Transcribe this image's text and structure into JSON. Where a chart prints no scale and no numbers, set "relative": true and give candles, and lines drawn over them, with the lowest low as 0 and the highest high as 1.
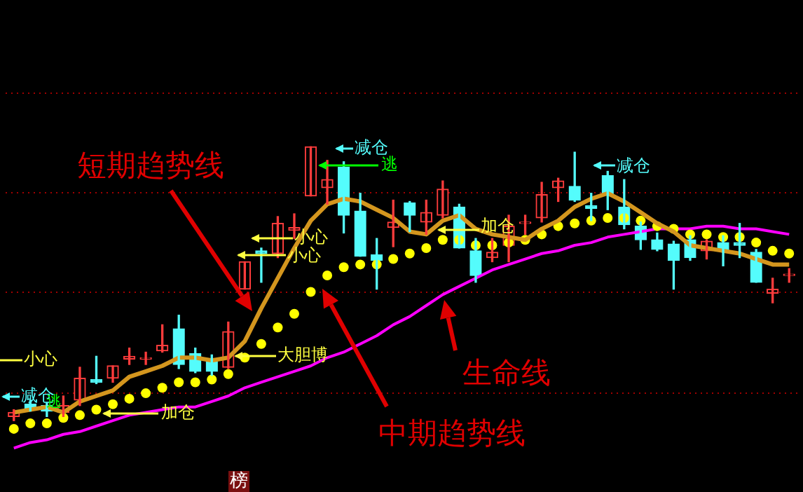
{
  "chart_data": {
    "type": "candlestick",
    "relative": true,
    "tick_labels": false,
    "ref_lines": [
      {
        "axis": "y",
        "value": 1.2,
        "color": "#a00000",
        "line_style": "dotted"
      },
      {
        "axis": "y",
        "value": 0.835,
        "color": "#a00000",
        "line_style": "dotted"
      },
      {
        "axis": "y",
        "value": 0.47,
        "color": "#a00000",
        "line_style": "dotted"
      },
      {
        "axis": "y",
        "value": 0.105,
        "color": "#a00000",
        "line_style": "dotted"
      }
    ],
    "categories": [
      null,
      null,
      null,
      null,
      null,
      null,
      null,
      null,
      null,
      null,
      null,
      null,
      null,
      null,
      null,
      null,
      null,
      null,
      null,
      null,
      null,
      null,
      null,
      null,
      null,
      null,
      null,
      null,
      null,
      null,
      null,
      null,
      null,
      null,
      null,
      null,
      null,
      null,
      null,
      null,
      null,
      null,
      null,
      null,
      null,
      null,
      null,
      null
    ],
    "ohlc": [
      [
        0.015,
        0.04,
        0,
        0.03
      ],
      [
        0.06,
        0.075,
        0.035,
        0.045
      ],
      [
        0.055,
        0.065,
        0.015,
        0.035
      ],
      [
        0.03,
        0.09,
        0.015,
        0.055
      ],
      [
        0.075,
        0.195,
        0.055,
        0.155
      ],
      [
        0.15,
        0.235,
        0.135,
        0.14
      ],
      [
        0.155,
        0.2,
        0.14,
        0.2
      ],
      [
        0.225,
        0.265,
        0.205,
        0.235
      ],
      [
        0.225,
        0.25,
        0.205,
        0.23
      ],
      [
        0.255,
        0.35,
        0.25,
        0.275
      ],
      [
        0.335,
        0.385,
        0.19,
        0.205
      ],
      [
        0.245,
        0.265,
        0.175,
        0.18
      ],
      [
        0.225,
        0.24,
        0.165,
        0.18
      ],
      [
        0.195,
        0.36,
        0.19,
        0.325
      ],
      [
        0.48,
        0.58,
        0.48,
        0.58
      ],
      [
        0.62,
        0.63,
        0.505,
        0.61
      ],
      [
        0.61,
        0.745,
        0.595,
        0.72
      ],
      [
        0.695,
        0.755,
        0.665,
        0.705
      ],
      [
        0.82,
        1,
        0.82,
        1
      ],
      [
        0.85,
        0.95,
        0.79,
        0.88
      ],
      [
        0.925,
        0.945,
        0.685,
        0.75
      ],
      [
        0.765,
        0.83,
        0.6,
        0.6
      ],
      [
        0.605,
        0.665,
        0.48,
        0.585
      ],
      [
        0.705,
        0.805,
        0.635,
        0.725
      ],
      [
        0.795,
        0.8,
        0.69,
        0.75
      ],
      [
        0.725,
        0.805,
        0.68,
        0.76
      ],
      [
        0.75,
        0.875,
        0.74,
        0.845
      ],
      [
        0.78,
        0.79,
        0.63,
        0.63
      ],
      [
        0.62,
        0.665,
        0.505,
        0.53
      ],
      [
        0.595,
        0.665,
        0.58,
        0.615
      ],
      [
        0.64,
        0.75,
        0.58,
        0.71
      ],
      [
        0.72,
        0.75,
        0.68,
        0.725
      ],
      [
        0.74,
        0.87,
        0.725,
        0.825
      ],
      [
        0.85,
        0.885,
        0.8,
        0.875
      ],
      [
        0.855,
        0.98,
        0.8,
        0.805
      ],
      [
        0.785,
        0.83,
        0.73,
        0.775
      ],
      [
        0.895,
        0.91,
        0.77,
        0.825
      ],
      [
        0.78,
        0.88,
        0.7,
        0.715
      ],
      [
        0.71,
        0.725,
        0.625,
        0.66
      ],
      [
        0.66,
        0.685,
        0.62,
        0.625
      ],
      [
        0.645,
        0.655,
        0.48,
        0.585
      ],
      [
        0.66,
        0.675,
        0.585,
        0.595
      ],
      [
        0.62,
        0.66,
        0.59,
        0.655
      ],
      [
        0.65,
        0.675,
        0.565,
        0.62
      ],
      [
        0.65,
        0.72,
        0.595,
        0.64
      ],
      [
        0.615,
        0.625,
        0.505,
        0.505
      ],
      [
        0.465,
        0.52,
        0.43,
        0.48
      ],
      [
        0.53,
        0.555,
        0.505,
        0.535
      ]
    ],
    "colors": [
      "#ff3c3c",
      "#54fcfc",
      "#54fcfc",
      "#ff3c3c",
      "#ff3c3c",
      "#54fcfc",
      "#ff3c3c",
      "#ff3c3c",
      "#ff3c3c",
      "#ff3c3c",
      "#54fcfc",
      "#54fcfc",
      "#54fcfc",
      "#ff3c3c",
      "#ff3c3c",
      "#54fcfc",
      "#ff3c3c",
      "#ff3c3c",
      "#ff3c3c",
      "#ff3c3c",
      "#54fcfc",
      "#54fcfc",
      "#54fcfc",
      "#ff3c3c",
      "#54fcfc",
      "#ff3c3c",
      "#ff3c3c",
      "#54fcfc",
      "#54fcfc",
      "#ff3c3c",
      "#ff3c3c",
      "#ff3c3c",
      "#ff3c3c",
      "#ff3c3c",
      "#54fcfc",
      "#54fcfc",
      "#54fcfc",
      "#54fcfc",
      "#54fcfc",
      "#54fcfc",
      "#54fcfc",
      "#54fcfc",
      "#ff3c3c",
      "#54fcfc",
      "#54fcfc",
      "#54fcfc",
      "#ff3c3c",
      "#ff3c3c"
    ],
    "series": [
      {
        "type": "line",
        "color": "#d4961e",
        "values": [
          0.03,
          0.04,
          0.05,
          0.03,
          0.07,
          0.09,
          0.11,
          0.16,
          0.18,
          0.2,
          0.23,
          0.23,
          0.22,
          0.23,
          0.29,
          0.41,
          0.52,
          0.63,
          0.73,
          0.79,
          0.81,
          0.8,
          0.77,
          0.74,
          0.69,
          0.68,
          0.73,
          0.75,
          0.7,
          0.68,
          0.67,
          0.66,
          0.7,
          0.73,
          0.78,
          0.81,
          0.83,
          0.8,
          0.76,
          0.72,
          0.69,
          0.64,
          0.63,
          0.62,
          0.61,
          0.59,
          0.57,
          0.57
        ]
      },
      {
        "type": "scatter",
        "color": "#ffff00",
        "marker": "circle",
        "values": [
          -0.03,
          -0.01,
          -0.01,
          0.01,
          0.02,
          0.04,
          0.06,
          0.08,
          0.1,
          0.12,
          0.14,
          0.14,
          0.15,
          0.17,
          0.23,
          0.28,
          0.34,
          0.39,
          0.47,
          0.53,
          0.56,
          0.57,
          0.57,
          0.59,
          0.61,
          0.63,
          0.66,
          0.66,
          0.64,
          0.64,
          0.65,
          0.66,
          0.68,
          0.71,
          0.72,
          0.73,
          0.74,
          0.74,
          0.73,
          0.71,
          0.7,
          0.68,
          0.68,
          0.67,
          0.67,
          0.65,
          0.62,
          0.61
        ]
      },
      {
        "type": "line",
        "color": "#ff00ff",
        "values": [
          -0.1,
          -0.08,
          -0.07,
          -0.05,
          -0.04,
          -0.02,
          0,
          0.02,
          0.03,
          0.04,
          0.05,
          0.05,
          0.07,
          0.09,
          0.12,
          0.14,
          0.16,
          0.18,
          0.2,
          0.23,
          0.25,
          0.28,
          0.31,
          0.35,
          0.38,
          0.42,
          0.46,
          0.49,
          0.52,
          0.55,
          0.57,
          0.59,
          0.61,
          0.62,
          0.64,
          0.65,
          0.67,
          0.68,
          0.69,
          0.7,
          0.7,
          0.7,
          0.71,
          0.71,
          0.7,
          0.7,
          0.69,
          0.68
        ]
      }
    ],
    "annotations": [
      "短期趋势线",
      "中期趋势线",
      "生命线",
      "小心",
      "减仓",
      "逃",
      "加仓",
      "大胆博",
      "小心",
      "小心",
      "减仓",
      "逃",
      "加仓",
      "减仓",
      "榜"
    ]
  }
}
